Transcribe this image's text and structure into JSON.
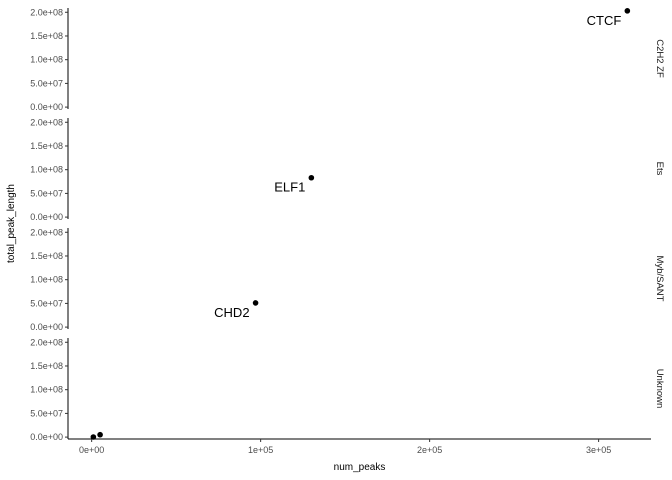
{
  "chart_data": {
    "type": "scatter",
    "faceted": true,
    "facet_strip_position": "right",
    "xlabel": "num_peaks",
    "ylabel": "total_peak_length",
    "xlim": [
      -14000,
      331000
    ],
    "ylim": [
      -4000000,
      209000000
    ],
    "x_ticks": [
      {
        "value": 0,
        "label": "0e+00"
      },
      {
        "value": 100000,
        "label": "1e+05"
      },
      {
        "value": 200000,
        "label": "2e+05"
      },
      {
        "value": 300000,
        "label": "3e+05"
      }
    ],
    "y_ticks": [
      {
        "value": 0,
        "label": "0.0e+00"
      },
      {
        "value": 50000000,
        "label": "5.0e+07"
      },
      {
        "value": 100000000,
        "label": "1.0e+08"
      },
      {
        "value": 150000000,
        "label": "1.5e+08"
      },
      {
        "value": 200000000,
        "label": "2.0e+08"
      }
    ],
    "panels": [
      {
        "facet": "C2H2 ZF",
        "points": [
          {
            "x": 317000,
            "y": 203000000,
            "label": "CTCF"
          }
        ]
      },
      {
        "facet": "Ets",
        "points": [
          {
            "x": 130000,
            "y": 83000000,
            "label": "ELF1"
          }
        ]
      },
      {
        "facet": "Myb/SANT",
        "points": [
          {
            "x": 97000,
            "y": 51000000,
            "label": "CHD2"
          }
        ]
      },
      {
        "facet": "Unknown",
        "points": [
          {
            "x": 1000,
            "y": 200000,
            "label": ""
          },
          {
            "x": 5000,
            "y": 5000000,
            "label": ""
          }
        ]
      }
    ]
  }
}
